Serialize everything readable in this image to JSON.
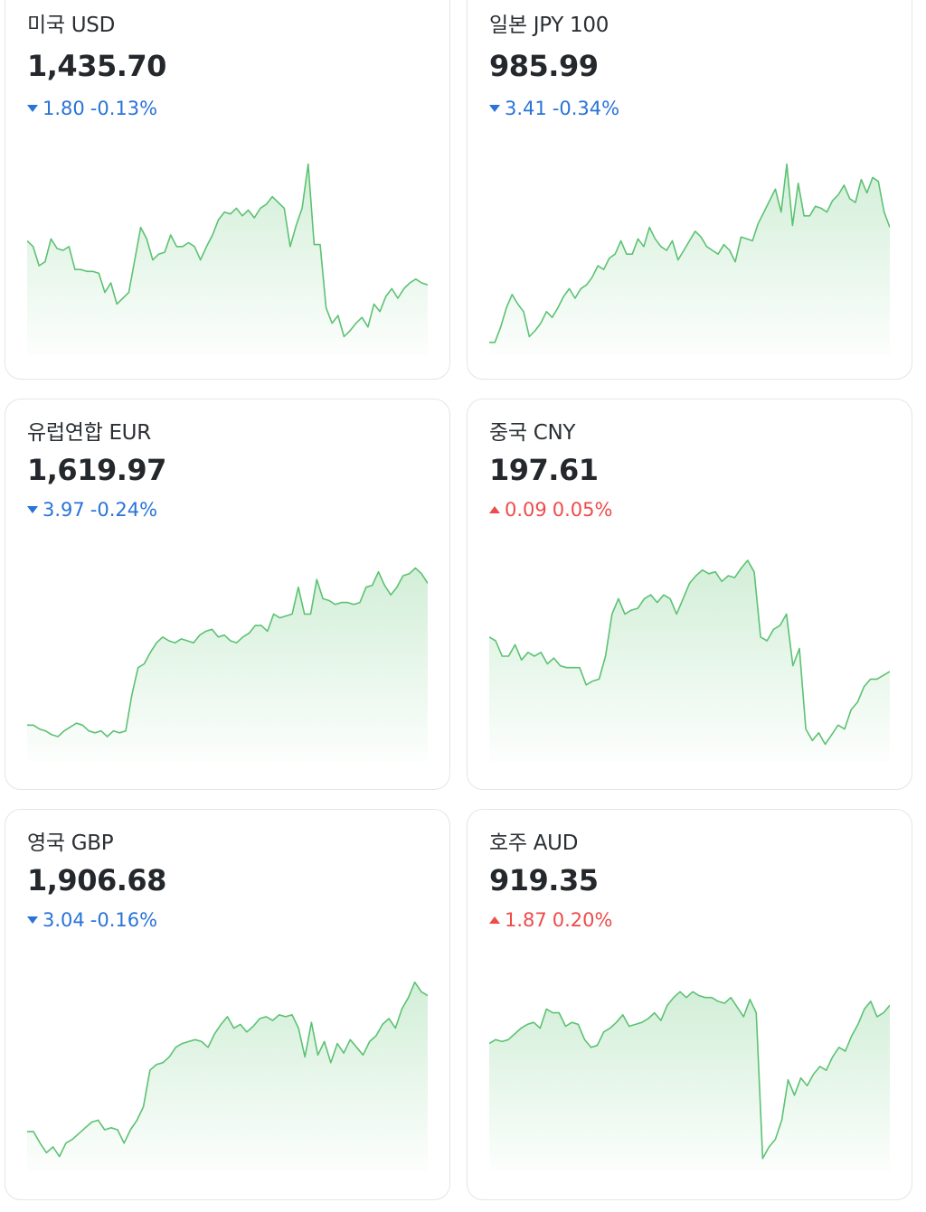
{
  "cards": [
    {
      "title": "미국 USD",
      "value": "1,435.70",
      "change_amount": "1.80",
      "change_percent": "-0.13%",
      "direction": "down",
      "series": [
        0.55,
        0.52,
        0.42,
        0.44,
        0.56,
        0.51,
        0.5,
        0.52,
        0.4,
        0.4,
        0.39,
        0.39,
        0.38,
        0.28,
        0.33,
        0.22,
        0.25,
        0.28,
        0.45,
        0.62,
        0.56,
        0.45,
        0.48,
        0.49,
        0.58,
        0.52,
        0.52,
        0.54,
        0.52,
        0.45,
        0.52,
        0.58,
        0.66,
        0.7,
        0.69,
        0.72,
        0.68,
        0.71,
        0.67,
        0.72,
        0.74,
        0.78,
        0.75,
        0.72,
        0.52,
        0.63,
        0.72,
        0.95,
        0.53,
        0.53,
        0.2,
        0.12,
        0.16,
        0.05,
        0.08,
        0.12,
        0.15,
        0.1,
        0.22,
        0.18,
        0.26,
        0.3,
        0.25,
        0.3,
        0.33,
        0.35,
        0.33,
        0.32
      ]
    },
    {
      "title": "일본 JPY 100",
      "value": "985.99",
      "change_amount": "3.41",
      "change_percent": "-0.34%",
      "direction": "down",
      "series": [
        0.02,
        0.02,
        0.1,
        0.2,
        0.27,
        0.22,
        0.18,
        0.05,
        0.08,
        0.12,
        0.18,
        0.15,
        0.2,
        0.26,
        0.3,
        0.25,
        0.3,
        0.32,
        0.36,
        0.42,
        0.4,
        0.46,
        0.48,
        0.55,
        0.48,
        0.48,
        0.56,
        0.52,
        0.62,
        0.56,
        0.52,
        0.5,
        0.55,
        0.45,
        0.5,
        0.55,
        0.6,
        0.57,
        0.52,
        0.5,
        0.48,
        0.53,
        0.5,
        0.44,
        0.57,
        0.56,
        0.55,
        0.64,
        0.7,
        0.76,
        0.82,
        0.7,
        0.95,
        0.63,
        0.85,
        0.68,
        0.68,
        0.73,
        0.72,
        0.7,
        0.76,
        0.79,
        0.84,
        0.77,
        0.75,
        0.87,
        0.8,
        0.88,
        0.86,
        0.7,
        0.62
      ]
    },
    {
      "title": "유럽연합 EUR",
      "value": "1,619.97",
      "change_amount": "3.97",
      "change_percent": "-0.24%",
      "direction": "down",
      "series": [
        0.14,
        0.14,
        0.12,
        0.11,
        0.09,
        0.08,
        0.11,
        0.13,
        0.15,
        0.14,
        0.11,
        0.1,
        0.11,
        0.08,
        0.11,
        0.1,
        0.11,
        0.3,
        0.44,
        0.46,
        0.52,
        0.57,
        0.6,
        0.58,
        0.57,
        0.59,
        0.58,
        0.57,
        0.61,
        0.63,
        0.64,
        0.6,
        0.61,
        0.58,
        0.57,
        0.6,
        0.62,
        0.66,
        0.66,
        0.63,
        0.72,
        0.7,
        0.71,
        0.72,
        0.86,
        0.72,
        0.72,
        0.9,
        0.8,
        0.79,
        0.77,
        0.78,
        0.78,
        0.77,
        0.78,
        0.86,
        0.87,
        0.94,
        0.87,
        0.82,
        0.86,
        0.92,
        0.93,
        0.96,
        0.93,
        0.88
      ]
    },
    {
      "title": "중국 CNY",
      "value": "197.61",
      "change_amount": "0.09",
      "change_percent": "0.05%",
      "direction": "up",
      "series": [
        0.6,
        0.58,
        0.5,
        0.5,
        0.56,
        0.48,
        0.52,
        0.5,
        0.52,
        0.46,
        0.49,
        0.45,
        0.44,
        0.44,
        0.44,
        0.35,
        0.37,
        0.38,
        0.5,
        0.72,
        0.8,
        0.72,
        0.74,
        0.75,
        0.8,
        0.82,
        0.78,
        0.82,
        0.8,
        0.72,
        0.8,
        0.88,
        0.92,
        0.95,
        0.93,
        0.94,
        0.89,
        0.92,
        0.91,
        0.96,
        1.0,
        0.94,
        0.6,
        0.58,
        0.64,
        0.66,
        0.72,
        0.45,
        0.54,
        0.12,
        0.06,
        0.1,
        0.04,
        0.09,
        0.14,
        0.12,
        0.22,
        0.26,
        0.34,
        0.38,
        0.38,
        0.4,
        0.42
      ]
    },
    {
      "title": "영국 GBP",
      "value": "1,906.68",
      "change_amount": "3.04",
      "change_percent": "-0.16%",
      "direction": "down",
      "series": [
        0.16,
        0.16,
        0.1,
        0.05,
        0.08,
        0.03,
        0.1,
        0.12,
        0.15,
        0.18,
        0.21,
        0.22,
        0.17,
        0.18,
        0.17,
        0.1,
        0.17,
        0.22,
        0.29,
        0.48,
        0.51,
        0.52,
        0.55,
        0.6,
        0.62,
        0.63,
        0.64,
        0.63,
        0.6,
        0.67,
        0.72,
        0.76,
        0.7,
        0.72,
        0.68,
        0.71,
        0.75,
        0.76,
        0.74,
        0.77,
        0.76,
        0.77,
        0.7,
        0.55,
        0.73,
        0.56,
        0.63,
        0.52,
        0.62,
        0.57,
        0.64,
        0.6,
        0.56,
        0.63,
        0.66,
        0.72,
        0.75,
        0.7,
        0.8,
        0.86,
        0.94,
        0.89,
        0.87
      ]
    },
    {
      "title": "호주 AUD",
      "value": "919.35",
      "change_amount": "1.87",
      "change_percent": "0.20%",
      "direction": "up",
      "series": [
        0.62,
        0.64,
        0.63,
        0.64,
        0.67,
        0.7,
        0.72,
        0.73,
        0.7,
        0.8,
        0.78,
        0.78,
        0.71,
        0.73,
        0.72,
        0.64,
        0.6,
        0.61,
        0.68,
        0.7,
        0.73,
        0.77,
        0.71,
        0.72,
        0.73,
        0.75,
        0.78,
        0.74,
        0.82,
        0.86,
        0.89,
        0.86,
        0.89,
        0.87,
        0.86,
        0.86,
        0.84,
        0.83,
        0.86,
        0.81,
        0.76,
        0.85,
        0.78,
        0.02,
        0.08,
        0.12,
        0.22,
        0.43,
        0.35,
        0.44,
        0.4,
        0.46,
        0.5,
        0.48,
        0.55,
        0.6,
        0.58,
        0.66,
        0.72,
        0.8,
        0.84,
        0.76,
        0.78,
        0.82
      ]
    }
  ]
}
